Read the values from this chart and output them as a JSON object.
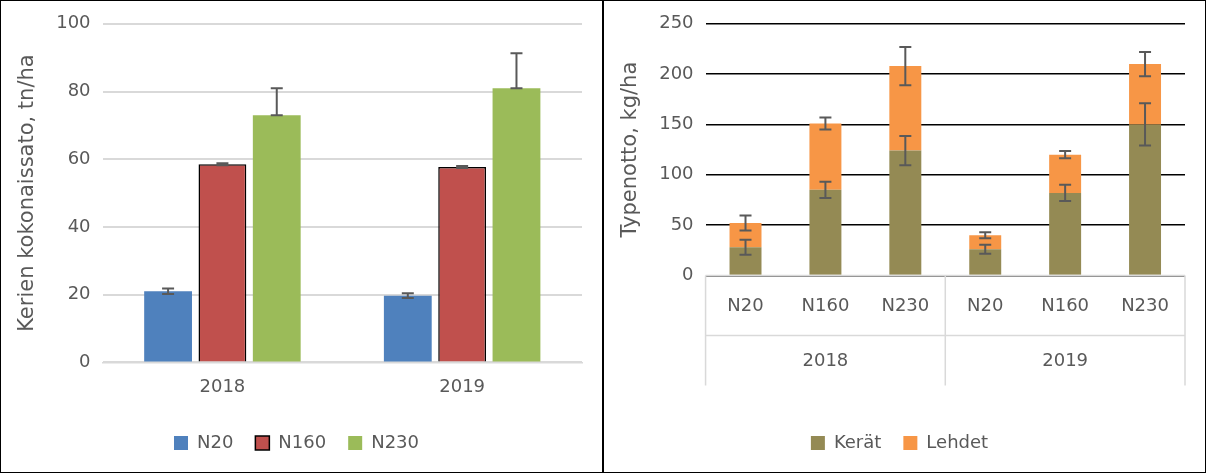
{
  "chart_data": [
    {
      "type": "bar",
      "ylabel": "Kerien kokonaissato, tn/ha",
      "categories": [
        "2018",
        "2019"
      ],
      "series": [
        {
          "name": "N20",
          "color": "#4f81bd",
          "values": [
            21,
            19.7
          ],
          "errors": [
            0.8,
            0.7
          ]
        },
        {
          "name": "N160",
          "color": "#c0504d",
          "values": [
            58.5,
            57.7
          ],
          "errors": [
            0.3,
            0.3
          ]
        },
        {
          "name": "N230",
          "color": "#9bbb59",
          "values": [
            73,
            81
          ],
          "errors": [
            [
              73,
              81
            ],
            [
              81,
              91.3
            ]
          ]
        }
      ],
      "ylim": [
        0,
        100
      ],
      "yticks": [
        0,
        20,
        40,
        60,
        80,
        100
      ],
      "grid": "y",
      "legend": "bottom"
    },
    {
      "type": "bar",
      "stacked": true,
      "ylabel": "Typenotto, kg/ha",
      "categories": [
        "N20",
        "N160",
        "N230",
        "N20",
        "N160",
        "N230"
      ],
      "series": [
        {
          "name": "Kerät",
          "color": "#948a54",
          "values": [
            28,
            85,
            124,
            26,
            82,
            150
          ],
          "errors": [
            7.5,
            8,
            14.5,
            4.5,
            8,
            21
          ]
        },
        {
          "name": "Lehdet",
          "color": "#f79646",
          "values": [
            24,
            66,
            84,
            14,
            38,
            60
          ],
          "errors": [
            7.5,
            6,
            19,
            3,
            3.5,
            12
          ]
        }
      ],
      "annotations": [
        "2018",
        "2019"
      ],
      "ylim": [
        0,
        250
      ],
      "yticks": [
        0,
        50,
        100,
        150,
        200,
        250
      ],
      "grid": "y",
      "legend": "bottom"
    }
  ]
}
